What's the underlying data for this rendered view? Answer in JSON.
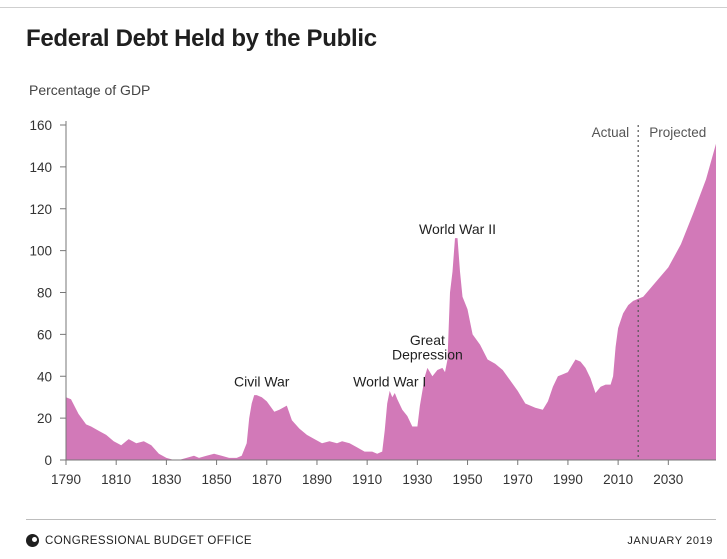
{
  "title": "Federal Debt Held by the Public",
  "footer": {
    "organization": "CONGRESSIONAL BUDGET OFFICE",
    "date": "JANUARY 2019"
  },
  "colors": {
    "area": "#d279b8",
    "axis": "#777777",
    "text": "#222222"
  },
  "chart_data": {
    "type": "area",
    "ylabel": "Percentage of GDP",
    "xlim": [
      1790,
      2049
    ],
    "ylim": [
      0,
      160
    ],
    "yticks": [
      0,
      20,
      40,
      60,
      80,
      100,
      120,
      140,
      160
    ],
    "xticks": [
      1790,
      1810,
      1830,
      1850,
      1870,
      1890,
      1910,
      1930,
      1950,
      1970,
      1990,
      2010,
      2030
    ],
    "divider": {
      "x": 2018,
      "left_label": "Actual",
      "right_label": "Projected"
    },
    "annotations": [
      {
        "text": "Civil War",
        "x": 1868,
        "y": 35
      },
      {
        "text": "World War I",
        "x": 1919,
        "y": 35
      },
      {
        "text": "Great",
        "x": 1934,
        "y": 55
      },
      {
        "text": "Depression",
        "x": 1934,
        "y": 48
      },
      {
        "text": "World War II",
        "x": 1946,
        "y": 108
      }
    ],
    "x": [
      1790,
      1792,
      1795,
      1798,
      1800,
      1803,
      1806,
      1809,
      1812,
      1815,
      1818,
      1821,
      1824,
      1827,
      1830,
      1833,
      1835,
      1838,
      1841,
      1843,
      1846,
      1849,
      1852,
      1855,
      1858,
      1860,
      1862,
      1863,
      1864,
      1865,
      1866,
      1868,
      1870,
      1873,
      1875,
      1878,
      1880,
      1883,
      1886,
      1889,
      1892,
      1895,
      1898,
      1900,
      1903,
      1906,
      1909,
      1912,
      1914,
      1916,
      1917,
      1918,
      1919,
      1920,
      1921,
      1922,
      1924,
      1926,
      1928,
      1930,
      1931,
      1932,
      1933,
      1934,
      1936,
      1938,
      1940,
      1941,
      1942,
      1943,
      1944,
      1945,
      1946,
      1947,
      1948,
      1950,
      1952,
      1955,
      1958,
      1961,
      1964,
      1967,
      1970,
      1973,
      1975,
      1977,
      1980,
      1982,
      1984,
      1986,
      1988,
      1990,
      1992,
      1993,
      1995,
      1997,
      1999,
      2001,
      2003,
      2005,
      2007,
      2008,
      2009,
      2010,
      2012,
      2014,
      2016,
      2018,
      2020,
      2025,
      2030,
      2035,
      2040,
      2045,
      2049
    ],
    "values": [
      30,
      29,
      22,
      17,
      16,
      14,
      12,
      9,
      7,
      10,
      8,
      9,
      7,
      3,
      1,
      0,
      0,
      1,
      2,
      1,
      2,
      3,
      2,
      1,
      1,
      2,
      8,
      20,
      27,
      31,
      31,
      30,
      28,
      23,
      24,
      26,
      19,
      15,
      12,
      10,
      8,
      9,
      8,
      9,
      8,
      6,
      4,
      4,
      3,
      4,
      14,
      27,
      33,
      30,
      32,
      29,
      24,
      21,
      16,
      16,
      26,
      33,
      40,
      44,
      40,
      43,
      44,
      42,
      48,
      80,
      90,
      106,
      106,
      90,
      78,
      72,
      60,
      55,
      48,
      46,
      43,
      38,
      33,
      27,
      26,
      25,
      24,
      28,
      35,
      40,
      41,
      42,
      46,
      48,
      47,
      44,
      39,
      32,
      35,
      36,
      36,
      40,
      54,
      63,
      70,
      74,
      76,
      77,
      78,
      85,
      92,
      103,
      118,
      134,
      151
    ]
  }
}
